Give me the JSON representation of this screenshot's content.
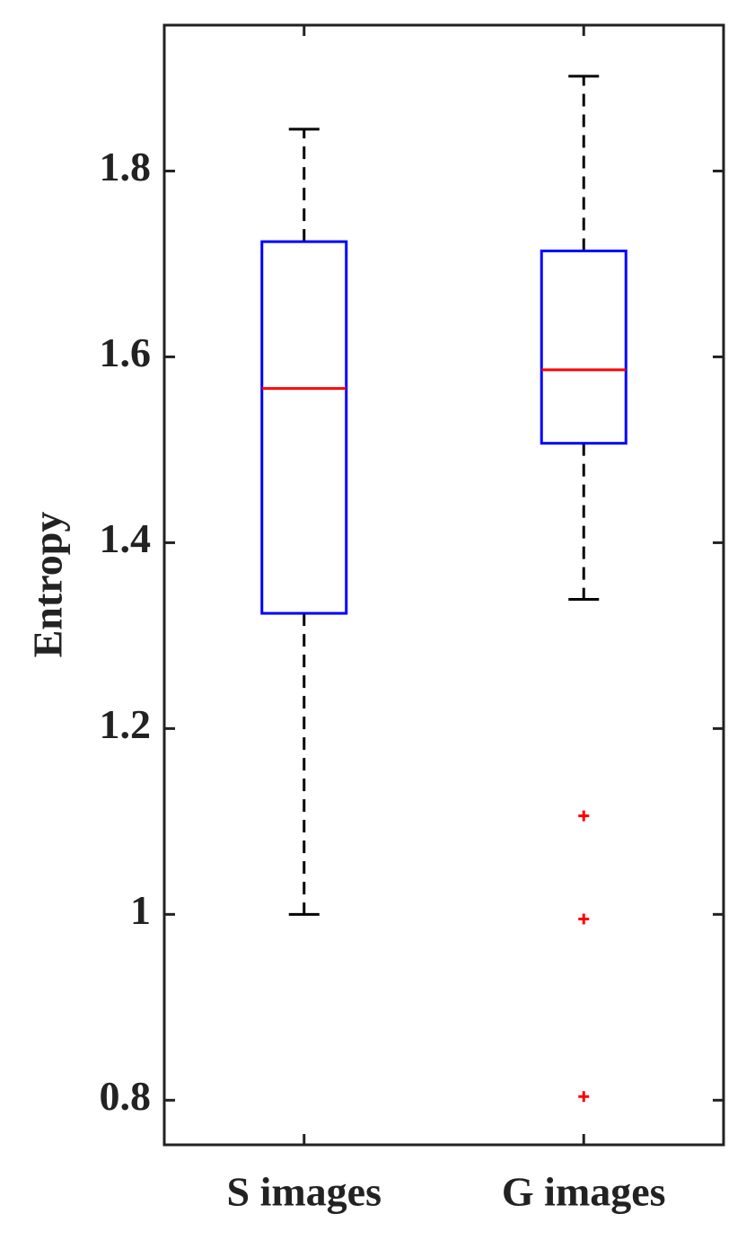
{
  "chart_data": {
    "type": "box",
    "ylabel": "Entropy",
    "categories": [
      "S images",
      "G images"
    ],
    "boxes": [
      {
        "whisker_low": 1.0,
        "q1": 1.324,
        "median": 1.566,
        "q3": 1.724,
        "whisker_high": 1.845,
        "outliers": []
      },
      {
        "whisker_low": 1.339,
        "q1": 1.507,
        "median": 1.586,
        "q3": 1.714,
        "whisker_high": 1.902,
        "outliers": [
          1.106,
          0.995,
          0.804
        ]
      }
    ],
    "box_color": "#0000ff",
    "median_color": "#ff0000",
    "whisker_color": "#000000",
    "outlier_color": "#ff0000",
    "ylim": [
      0.752,
      1.957
    ],
    "yticks": [
      0.8,
      1,
      1.2,
      1.4,
      1.6,
      1.8
    ]
  }
}
